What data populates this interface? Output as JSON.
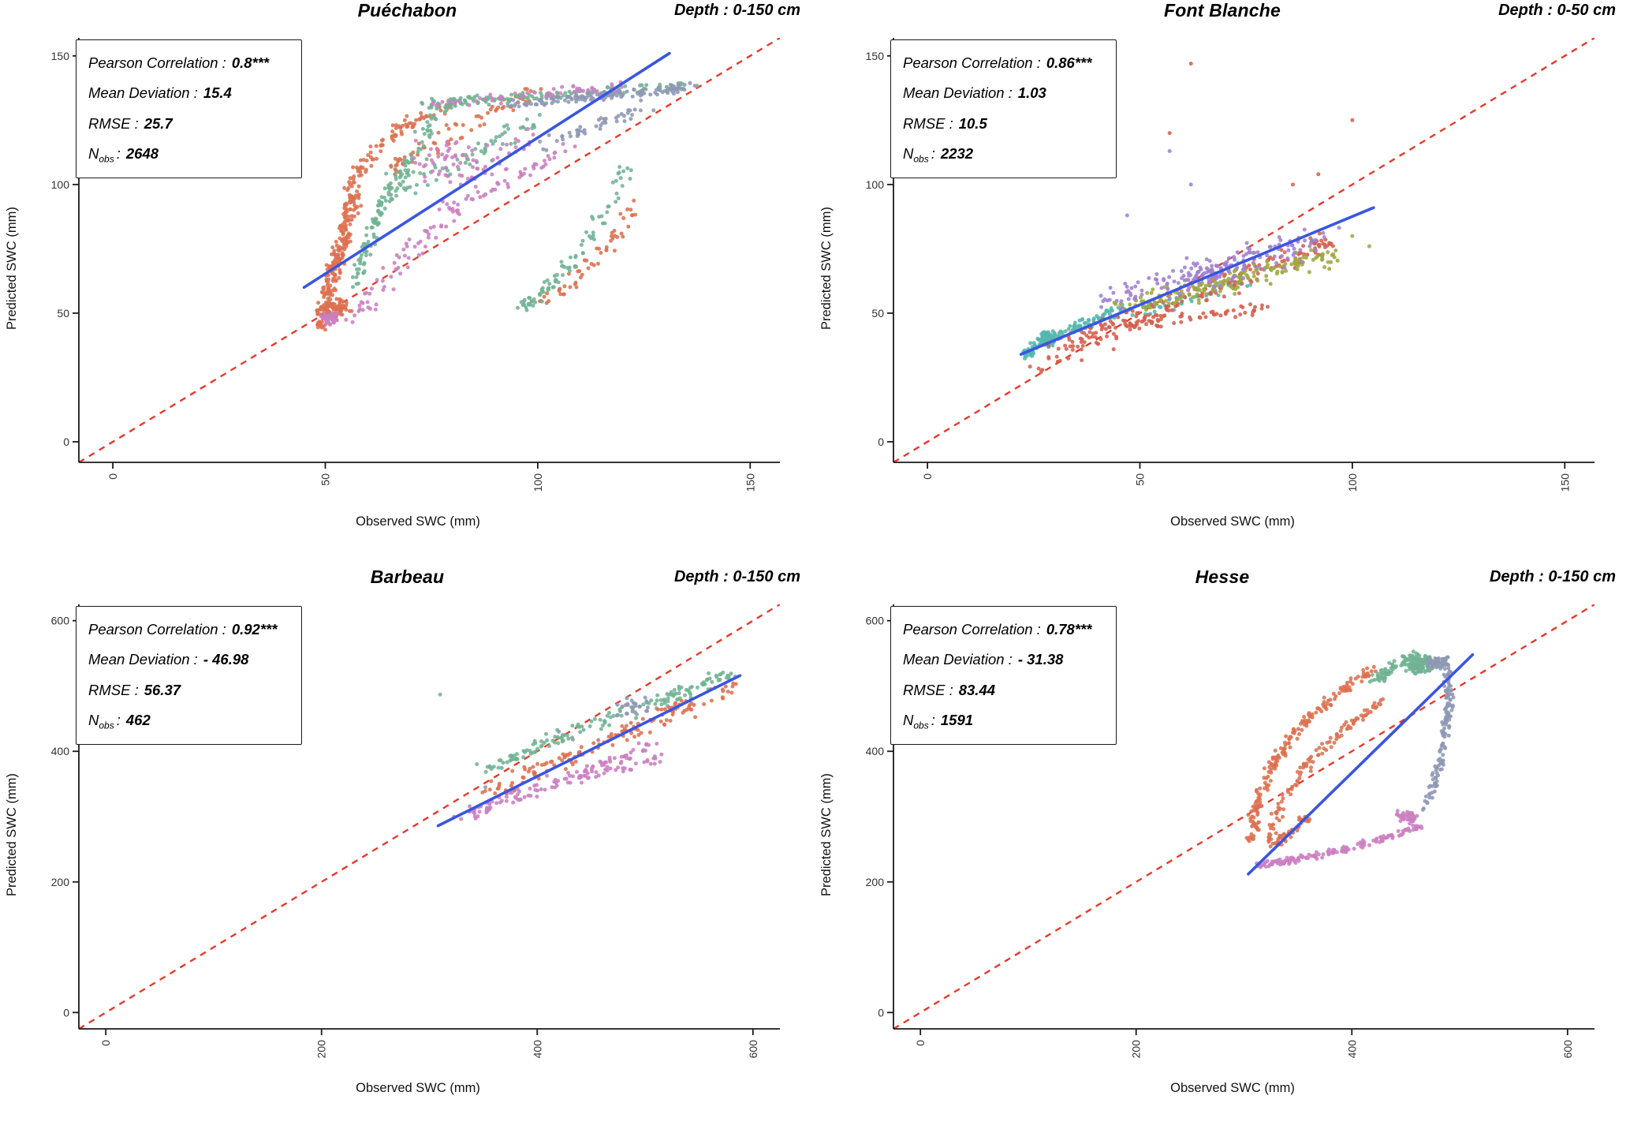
{
  "panels": [
    {
      "title": "Puéchabon",
      "depth_label": "Depth : 0-150 cm",
      "stats": {
        "rows": [
          {
            "label": "Pearson Correlation :",
            "value": "0.8***"
          },
          {
            "label": "Mean Deviation :",
            "value": "15.4"
          },
          {
            "label": "RMSE :",
            "value": "25.7"
          }
        ],
        "nobs": {
          "pre": "N",
          "sub": "obs",
          "sep": ":",
          "value": "2648"
        }
      },
      "chart_data": {
        "type": "scatter",
        "xlabel": "Observed SWC (mm)",
        "ylabel": "Predicted SWC (mm)",
        "xlim": [
          -8,
          157
        ],
        "ylim": [
          -8,
          157
        ],
        "xticks": [
          0,
          50,
          100,
          150
        ],
        "yticks": [
          0,
          50,
          100,
          150
        ],
        "identity_color": "#e8392b",
        "regression": {
          "x1": 45,
          "y1": 60,
          "x2": 131,
          "y2": 151,
          "color": "#3a55e2"
        },
        "clusters": [
          {
            "kind": "curve",
            "color": "#dd7150",
            "n": 240,
            "p0": [
              49,
              46
            ],
            "p1": [
              52,
              68
            ],
            "p2": [
              57,
              96
            ],
            "jx": 2.2,
            "jy": 3.5
          },
          {
            "kind": "curve",
            "color": "#dd7150",
            "n": 90,
            "p0": [
              56,
              96
            ],
            "p1": [
              59,
              118
            ],
            "p2": [
              79,
              131
            ],
            "jx": 2.5,
            "jy": 2.5
          },
          {
            "kind": "band",
            "color": "#dd7150",
            "n": 70,
            "x1": 62,
            "y1": 104,
            "x2": 100,
            "y2": 137,
            "jx": 4,
            "jy": 4
          },
          {
            "kind": "curve",
            "color": "#dd7150",
            "n": 55,
            "p0": [
              99,
              53
            ],
            "p1": [
              112,
              62
            ],
            "p2": [
              124,
              93
            ],
            "jx": 3,
            "jy": 3
          },
          {
            "kind": "blob",
            "color": "#dd7150",
            "n": 60,
            "cx": 53,
            "cy": 52,
            "sx": 3,
            "sy": 4
          },
          {
            "kind": "curve",
            "color": "#71b393",
            "n": 130,
            "p0": [
              57,
              60
            ],
            "p1": [
              62,
              98
            ],
            "p2": [
              79,
              131
            ],
            "jx": 2.5,
            "jy": 3
          },
          {
            "kind": "band",
            "color": "#71b393",
            "n": 150,
            "x1": 74,
            "y1": 131,
            "x2": 136,
            "y2": 139,
            "jx": 4,
            "jy": 2.2
          },
          {
            "kind": "curve",
            "color": "#71b393",
            "n": 85,
            "p0": [
              96,
              52
            ],
            "p1": [
              108,
              62
            ],
            "p2": [
              121,
              107
            ],
            "jx": 2.5,
            "jy": 3
          },
          {
            "kind": "band",
            "color": "#71b393",
            "n": 70,
            "x1": 66,
            "y1": 96,
            "x2": 100,
            "y2": 126,
            "jx": 5,
            "jy": 5
          },
          {
            "kind": "band",
            "color": "#8e97b4",
            "n": 130,
            "x1": 94,
            "y1": 131,
            "x2": 136,
            "y2": 138,
            "jx": 5,
            "jy": 2
          },
          {
            "kind": "band",
            "color": "#8e97b4",
            "n": 45,
            "x1": 100,
            "y1": 114,
            "x2": 126,
            "y2": 131,
            "jx": 4,
            "jy": 3
          },
          {
            "kind": "curve",
            "color": "#cb7fc0",
            "n": 100,
            "p0": [
              55,
              46
            ],
            "p1": [
              68,
              76
            ],
            "p2": [
              99,
              119
            ],
            "jx": 4,
            "jy": 5
          },
          {
            "kind": "band",
            "color": "#cb7fc0",
            "n": 55,
            "x1": 74,
            "y1": 131,
            "x2": 122,
            "y2": 139,
            "jx": 5,
            "jy": 2.5
          },
          {
            "kind": "blob",
            "color": "#cb7fc0",
            "n": 55,
            "cx": 80,
            "cy": 108,
            "sx": 10,
            "sy": 9
          },
          {
            "kind": "band",
            "color": "#cb7fc0",
            "n": 35,
            "x1": 86,
            "y1": 95,
            "x2": 110,
            "y2": 117,
            "jx": 3,
            "jy": 3
          },
          {
            "kind": "blob",
            "color": "#cb7fc0",
            "n": 40,
            "cx": 51,
            "cy": 48,
            "sx": 2.5,
            "sy": 2.5
          }
        ]
      }
    },
    {
      "title": "Font Blanche",
      "depth_label": "Depth : 0-50 cm",
      "stats": {
        "rows": [
          {
            "label": "Pearson Correlation :",
            "value": "0.86***"
          },
          {
            "label": "Mean Deviation :",
            "value": "1.03"
          },
          {
            "label": "RMSE :",
            "value": "10.5"
          }
        ],
        "nobs": {
          "pre": "N",
          "sub": "obs",
          "sep": ":",
          "value": "2232"
        }
      },
      "chart_data": {
        "type": "scatter",
        "xlabel": "Observed SWC (mm)",
        "ylabel": "Predicted SWC (mm)",
        "xlim": [
          -8,
          157
        ],
        "ylim": [
          -8,
          157
        ],
        "xticks": [
          0,
          50,
          100,
          150
        ],
        "yticks": [
          0,
          50,
          100,
          150
        ],
        "identity_color": "#e8392b",
        "regression": {
          "x1": 22,
          "y1": 34,
          "x2": 105,
          "y2": 91,
          "color": "#3a55e2"
        },
        "clusters": [
          {
            "kind": "curve",
            "color": "#54b7af",
            "n": 140,
            "p0": [
              23,
              34
            ],
            "p1": [
              29,
              41
            ],
            "p2": [
              46,
              52
            ],
            "jx": 2,
            "jy": 2.5
          },
          {
            "kind": "blob",
            "color": "#54b7af",
            "n": 70,
            "cx": 28,
            "cy": 40,
            "sx": 2.5,
            "sy": 3
          },
          {
            "kind": "band",
            "color": "#54b7af",
            "n": 40,
            "x1": 48,
            "y1": 50,
            "x2": 75,
            "y2": 62,
            "jx": 4,
            "jy": 3
          },
          {
            "kind": "band",
            "color": "#d4604d",
            "n": 200,
            "x1": 26,
            "y1": 31,
            "x2": 95,
            "y2": 79,
            "jx": 4.5,
            "jy": 6
          },
          {
            "kind": "band",
            "color": "#d4604d",
            "n": 70,
            "x1": 38,
            "y1": 44,
            "x2": 80,
            "y2": 52,
            "jx": 3,
            "jy": 2.5
          },
          {
            "kind": "points",
            "color": "#d4604d",
            "pts": [
              [
                62,
                147
              ],
              [
                57,
                120
              ],
              [
                100,
                125
              ],
              [
                86,
                100
              ],
              [
                92,
                104
              ]
            ]
          },
          {
            "kind": "band",
            "color": "#9da93f",
            "n": 170,
            "x1": 45,
            "y1": 52,
            "x2": 96,
            "y2": 73,
            "jx": 5,
            "jy": 5
          },
          {
            "kind": "points",
            "color": "#9da93f",
            "pts": [
              [
                100,
                80
              ],
              [
                104,
                76
              ]
            ]
          },
          {
            "kind": "band",
            "color": "#9f81d2",
            "n": 130,
            "x1": 40,
            "y1": 54,
            "x2": 96,
            "y2": 80,
            "jx": 5,
            "jy": 6
          },
          {
            "kind": "blob",
            "color": "#9f81d2",
            "n": 50,
            "cx": 66,
            "cy": 66,
            "sx": 7,
            "sy": 6
          },
          {
            "kind": "points",
            "color": "#9f81d2",
            "pts": [
              [
                57,
                113
              ],
              [
                62,
                100
              ],
              [
                47,
                88
              ]
            ]
          }
        ]
      }
    },
    {
      "title": "Barbeau",
      "depth_label": "Depth : 0-150 cm",
      "stats": {
        "rows": [
          {
            "label": "Pearson Correlation :",
            "value": "0.92***"
          },
          {
            "label": "Mean Deviation :",
            "value": "- 46.98"
          },
          {
            "label": "RMSE :",
            "value": "56.37"
          }
        ],
        "nobs": {
          "pre": "N",
          "sub": "obs",
          "sep": ":",
          "value": "462"
        }
      },
      "chart_data": {
        "type": "scatter",
        "xlabel": "Observed SWC (mm)",
        "ylabel": "Predicted SWC (mm)",
        "xlim": [
          -25,
          625
        ],
        "ylim": [
          -25,
          625
        ],
        "xticks": [
          0,
          200,
          400,
          600
        ],
        "yticks": [
          0,
          200,
          400,
          600
        ],
        "identity_color": "#e8392b",
        "regression": {
          "x1": 308,
          "y1": 286,
          "x2": 588,
          "y2": 516,
          "color": "#3a55e2"
        },
        "clusters": [
          {
            "kind": "band",
            "color": "#71b393",
            "n": 110,
            "x1": 395,
            "y1": 408,
            "x2": 580,
            "y2": 518,
            "jx": 14,
            "jy": 10
          },
          {
            "kind": "band",
            "color": "#71b393",
            "n": 40,
            "x1": 350,
            "y1": 370,
            "x2": 420,
            "y2": 420,
            "jx": 10,
            "jy": 9
          },
          {
            "kind": "points",
            "color": "#71b393",
            "pts": [
              [
                310,
                487
              ]
            ]
          },
          {
            "kind": "band",
            "color": "#dd7150",
            "n": 140,
            "x1": 345,
            "y1": 330,
            "x2": 582,
            "y2": 500,
            "jx": 16,
            "jy": 13
          },
          {
            "kind": "band",
            "color": "#cb7fc0",
            "n": 110,
            "x1": 330,
            "y1": 300,
            "x2": 520,
            "y2": 415,
            "jx": 16,
            "jy": 14
          },
          {
            "kind": "band",
            "color": "#cb7fc0",
            "n": 35,
            "x1": 430,
            "y1": 355,
            "x2": 520,
            "y2": 390,
            "jx": 12,
            "jy": 10
          },
          {
            "kind": "blob",
            "color": "#8e97b4",
            "n": 26,
            "cx": 487,
            "cy": 470,
            "sx": 22,
            "sy": 18
          },
          {
            "kind": "points",
            "color": "#8e97b4",
            "pts": [
              [
                352,
                345
              ],
              [
                420,
                430
              ],
              [
                433,
                418
              ]
            ]
          }
        ]
      }
    },
    {
      "title": "Hesse",
      "depth_label": "Depth : 0-150 cm",
      "stats": {
        "rows": [
          {
            "label": "Pearson Correlation :",
            "value": "0.78***"
          },
          {
            "label": "Mean Deviation :",
            "value": "- 31.38"
          },
          {
            "label": "RMSE :",
            "value": "83.44"
          }
        ],
        "nobs": {
          "pre": "N",
          "sub": "obs",
          "sep": ":",
          "value": "1591"
        }
      },
      "chart_data": {
        "type": "scatter",
        "xlabel": "Observed SWC (mm)",
        "ylabel": "Predicted SWC (mm)",
        "xlim": [
          -25,
          625
        ],
        "ylim": [
          -25,
          625
        ],
        "xticks": [
          0,
          200,
          400,
          600
        ],
        "yticks": [
          0,
          200,
          400,
          600
        ],
        "identity_color": "#e8392b",
        "regression": {
          "x1": 304,
          "y1": 212,
          "x2": 512,
          "y2": 548,
          "color": "#3a55e2"
        },
        "clusters": [
          {
            "kind": "curve",
            "color": "#dd7150",
            "n": 200,
            "p0": [
              308,
              262
            ],
            "p1": [
              312,
              420
            ],
            "p2": [
              418,
              522
            ],
            "jx": 7,
            "jy": 9
          },
          {
            "kind": "curve",
            "color": "#dd7150",
            "n": 110,
            "p0": [
              322,
              252
            ],
            "p1": [
              340,
              390
            ],
            "p2": [
              432,
              478
            ],
            "jx": 6,
            "jy": 8
          },
          {
            "kind": "band",
            "color": "#dd7150",
            "n": 40,
            "x1": 330,
            "y1": 260,
            "x2": 360,
            "y2": 300,
            "jx": 6,
            "jy": 8
          },
          {
            "kind": "blob",
            "color": "#71b393",
            "n": 150,
            "cx": 463,
            "cy": 533,
            "sx": 14,
            "sy": 16
          },
          {
            "kind": "band",
            "color": "#71b393",
            "n": 55,
            "x1": 420,
            "y1": 505,
            "x2": 455,
            "y2": 550,
            "jx": 8,
            "jy": 8
          },
          {
            "kind": "curve",
            "color": "#8e97b4",
            "n": 140,
            "p0": [
              487,
              542
            ],
            "p1": [
              497,
              440
            ],
            "p2": [
              468,
              312
            ],
            "jx": 5,
            "jy": 8
          },
          {
            "kind": "blob",
            "color": "#8e97b4",
            "n": 45,
            "cx": 479,
            "cy": 536,
            "sx": 9,
            "sy": 9
          },
          {
            "kind": "curve",
            "color": "#cb7fc0",
            "n": 150,
            "p0": [
              312,
              226
            ],
            "p1": [
              382,
              238
            ],
            "p2": [
              468,
              288
            ],
            "jx": 5,
            "jy": 6
          },
          {
            "kind": "blob",
            "color": "#cb7fc0",
            "n": 45,
            "cx": 452,
            "cy": 300,
            "sx": 10,
            "sy": 10
          }
        ]
      }
    }
  ]
}
